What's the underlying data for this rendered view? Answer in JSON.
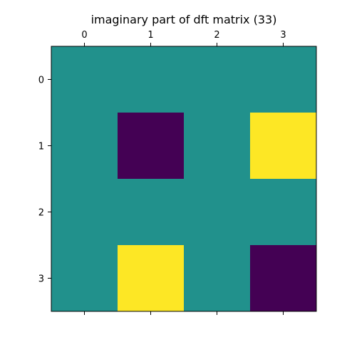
{
  "chart_data": {
    "type": "heatmap",
    "title": "imaginary part of dft matrix (33)",
    "xlabel": "",
    "ylabel": "",
    "x_categories": [
      "0",
      "1",
      "2",
      "3"
    ],
    "y_categories": [
      "0",
      "1",
      "2",
      "3"
    ],
    "x_axis_position": "top",
    "y_axis_position": "left",
    "y_order": "top-to-bottom",
    "values": [
      [
        0,
        0,
        0,
        0
      ],
      [
        0,
        -1,
        0,
        1
      ],
      [
        0,
        0,
        0,
        0
      ],
      [
        0,
        1,
        0,
        -1
      ]
    ],
    "vmin": -1,
    "vmax": 1,
    "colormap": "viridis",
    "colors": {
      "min": "#440154",
      "mid": "#21918c",
      "max": "#fde725"
    },
    "grid": false,
    "legend": "none"
  }
}
